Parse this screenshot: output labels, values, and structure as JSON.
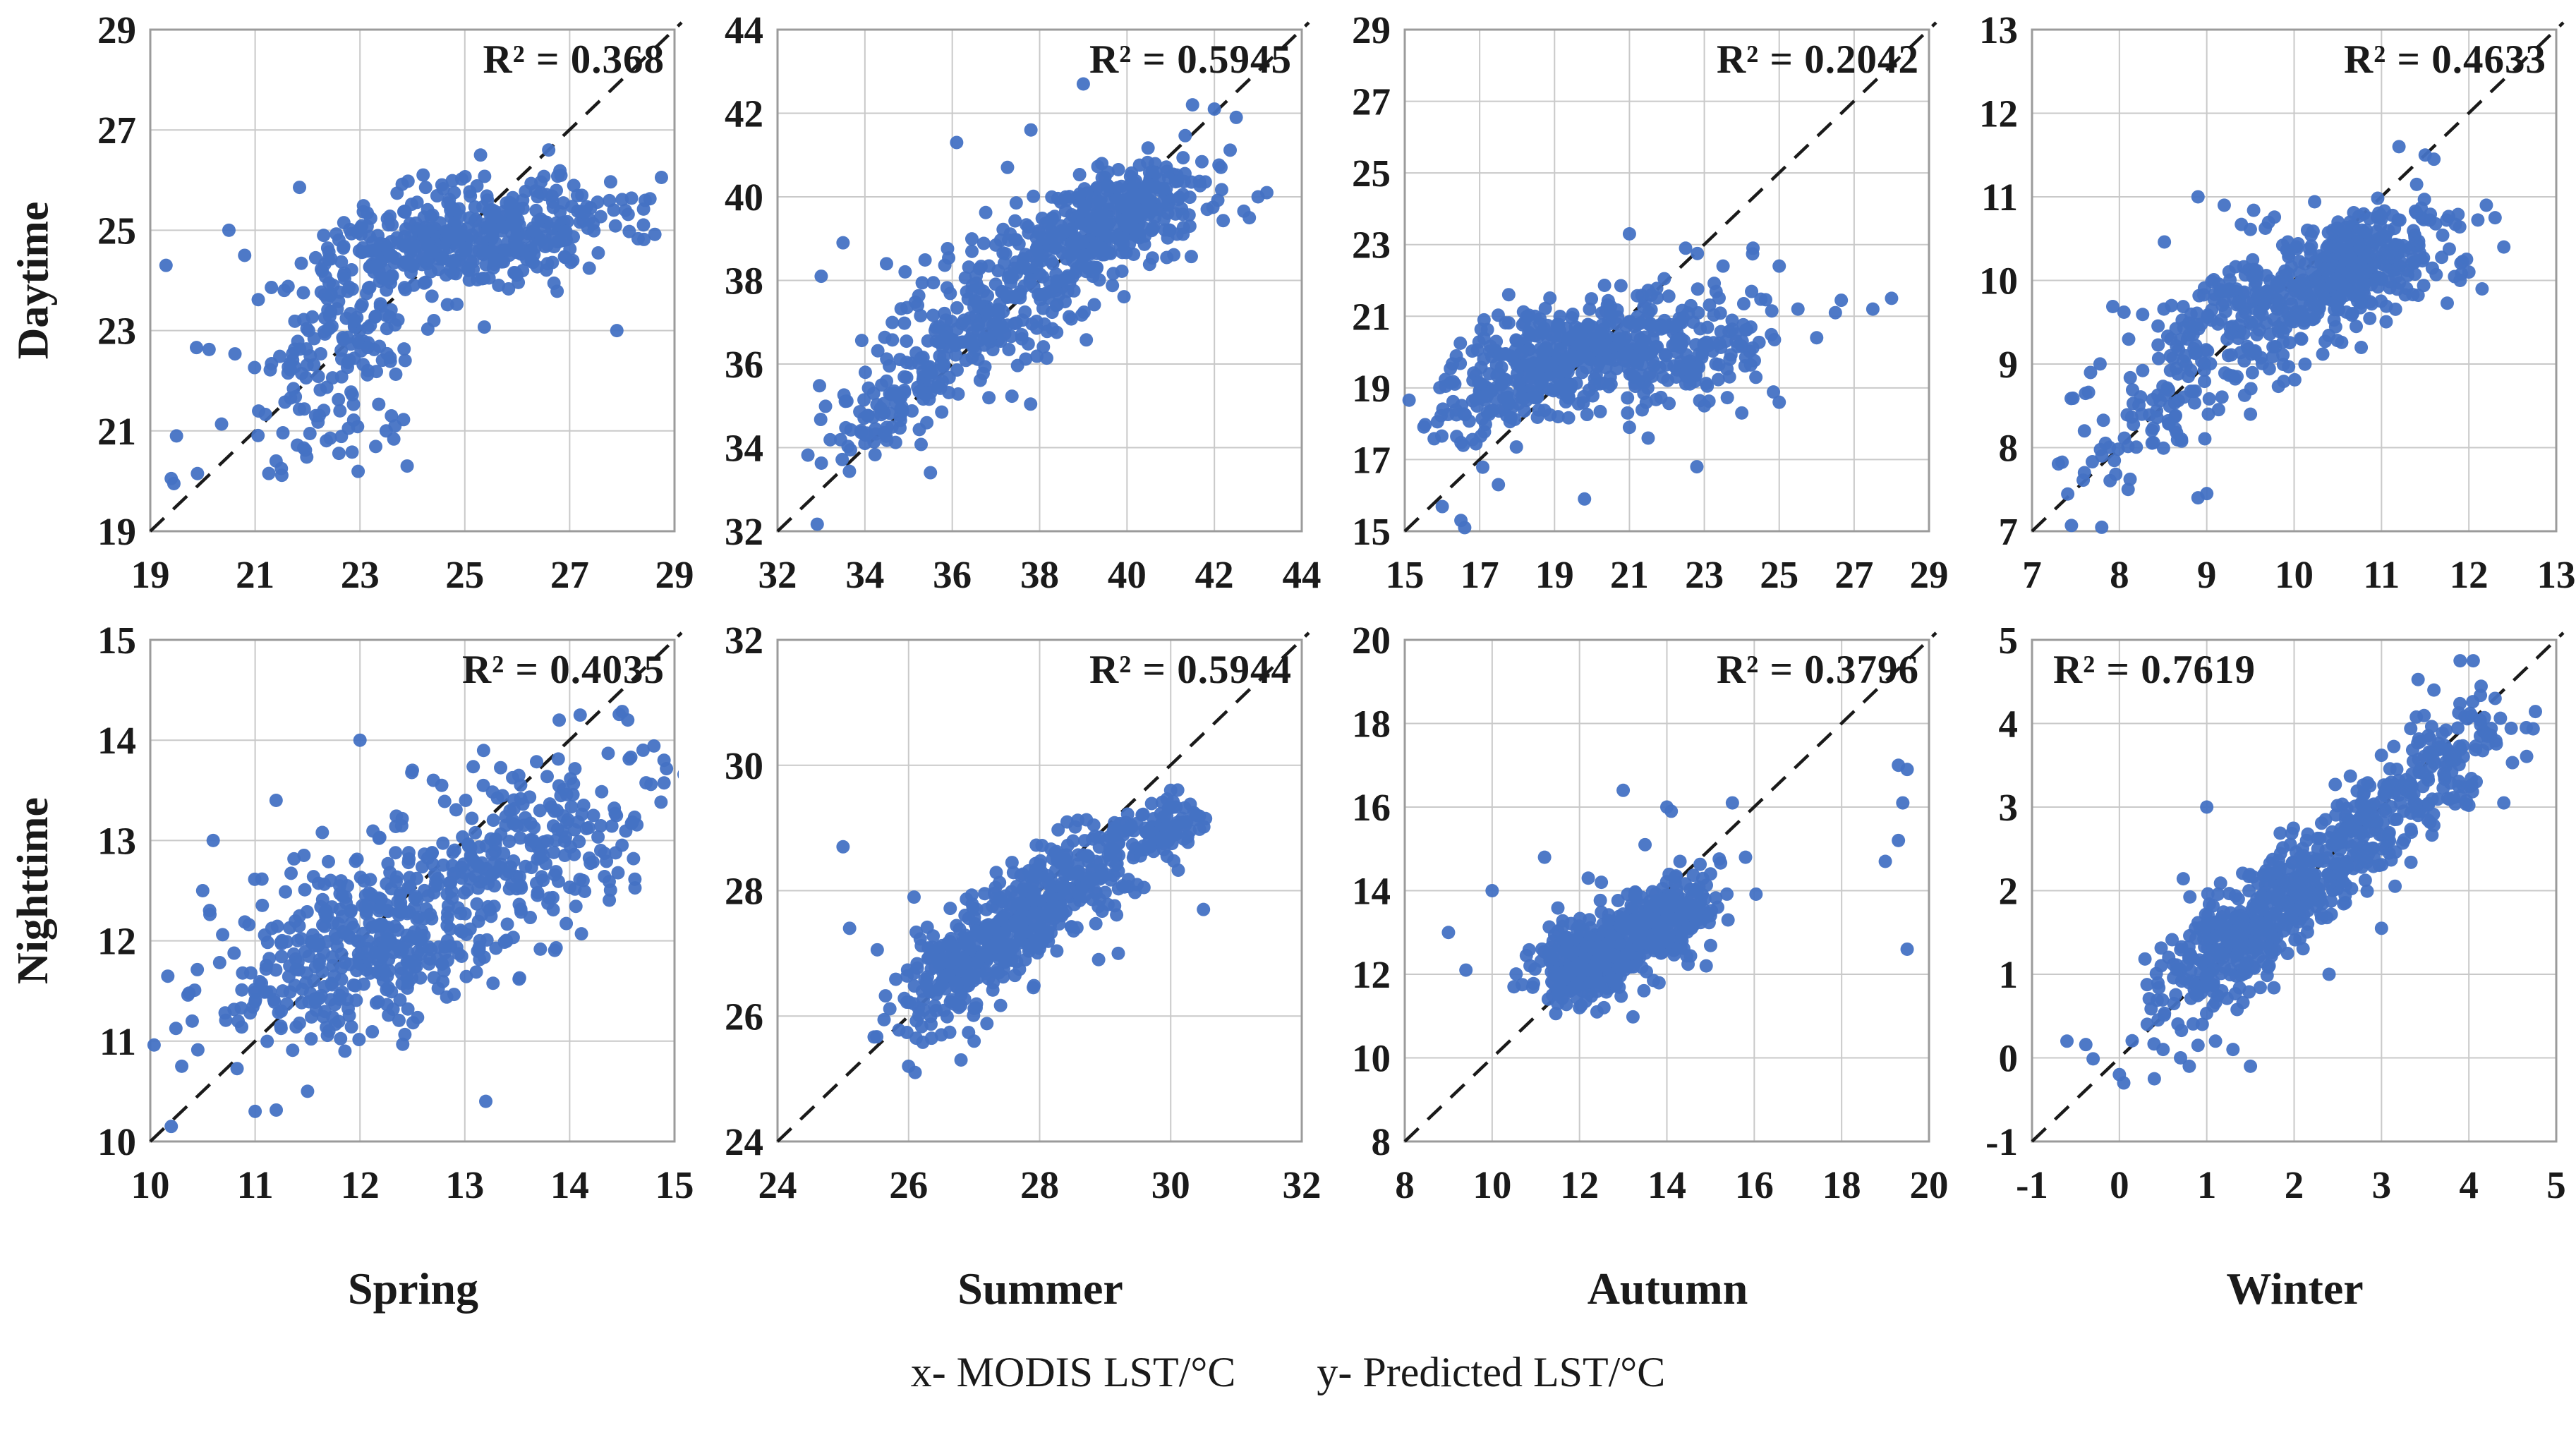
{
  "figure": {
    "row_labels": [
      "Daytime",
      "Nighttime"
    ],
    "season_labels": [
      "Spring",
      "Summer",
      "Autumn",
      "Winter"
    ],
    "caption": {
      "x_label": "x- MODIS LST/°C",
      "y_label": "y- Predicted LST/°C"
    },
    "colors": {
      "point": "#4472C4",
      "grid": "#c9c9c9",
      "border": "#9b9b9b",
      "diagonal": "#1a1a1a",
      "text": "#1a1a1a"
    }
  },
  "chart_data": {
    "type": "scatter",
    "layout": "2x4 grid of identity-line scatter plots; rows = Daytime/Nighttime, columns = Spring/Summer/Autumn/Winter; each panel square with equal x/y ranges, light gridlines, dashed 1:1 diagonal",
    "xlabel": "MODIS LST/°C",
    "ylabel": "Predicted LST/°C",
    "legend": "none",
    "panels": [
      {
        "row": "Daytime",
        "season": "Spring",
        "r2": 0.368,
        "r2_label": "R² = 0.368",
        "r2_align": "right",
        "axis_min": 19,
        "axis_max": 29,
        "tick_step": 2,
        "ticks": [
          19,
          21,
          23,
          25,
          27,
          29
        ],
        "identity_line": true,
        "points": {
          "seed": 11,
          "clusters": [
            {
              "cx": 25.3,
              "cy": 24.9,
              "sx": 1.35,
              "sy": 0.5,
              "rho": 0.3,
              "n": 380
            },
            {
              "cx": 23.0,
              "cy": 23.6,
              "sx": 1.0,
              "sy": 0.9,
              "rho": 0.45,
              "n": 160
            },
            {
              "cx": 22.3,
              "cy": 21.7,
              "sx": 0.7,
              "sy": 0.7,
              "rho": 0.3,
              "n": 60
            }
          ],
          "outliers": [
            [
              19.3,
              24.3
            ],
            [
              19.5,
              20.9
            ],
            [
              19.4,
              20.05
            ],
            [
              19.45,
              19.95
            ],
            [
              19.9,
              20.15
            ],
            [
              21.4,
              20.4
            ],
            [
              21.5,
              20.25
            ],
            [
              23.9,
              20.3
            ],
            [
              23.5,
              21.0
            ],
            [
              23.6,
              21.3
            ],
            [
              27.9,
              23.0
            ],
            [
              26.6,
              26.6
            ],
            [
              25.3,
              26.5
            ],
            [
              20.5,
              25.0
            ],
            [
              20.8,
              24.5
            ]
          ]
        }
      },
      {
        "row": "Daytime",
        "season": "Summer",
        "r2": 0.5945,
        "r2_label": "R² = 0.5945",
        "r2_align": "right",
        "axis_min": 32,
        "axis_max": 44,
        "tick_step": 2,
        "ticks": [
          32,
          34,
          36,
          38,
          40,
          42,
          44
        ],
        "identity_line": true,
        "points": {
          "seed": 22,
          "clusters": [
            {
              "cx": 39.7,
              "cy": 39.5,
              "sx": 1.15,
              "sy": 0.7,
              "rho": 0.5,
              "n": 330
            },
            {
              "cx": 37.3,
              "cy": 37.6,
              "sx": 1.3,
              "sy": 1.1,
              "rho": 0.5,
              "n": 260
            },
            {
              "cx": 34.8,
              "cy": 35.3,
              "sx": 0.8,
              "sy": 0.8,
              "rho": 0.55,
              "n": 110
            }
          ],
          "outliers": [
            [
              33.0,
              38.1
            ],
            [
              33.5,
              38.9
            ],
            [
              36.1,
              41.3
            ],
            [
              37.8,
              41.6
            ],
            [
              39.0,
              42.7
            ],
            [
              42.5,
              41.9
            ],
            [
              43.0,
              40.0
            ],
            [
              42.8,
              39.5
            ],
            [
              35.5,
              33.4
            ],
            [
              34.0,
              34.1
            ],
            [
              43.2,
              40.1
            ],
            [
              41.5,
              42.2
            ],
            [
              42.0,
              42.1
            ]
          ]
        }
      },
      {
        "row": "Daytime",
        "season": "Autumn",
        "r2": 0.2042,
        "r2_label": "R² = 0.2042",
        "r2_align": "right",
        "axis_min": 15,
        "axis_max": 29,
        "tick_step": 2,
        "ticks": [
          15,
          17,
          19,
          21,
          23,
          25,
          27,
          29
        ],
        "identity_line": true,
        "points": {
          "seed": 33,
          "clusters": [
            {
              "cx": 19.3,
              "cy": 19.9,
              "sx": 1.3,
              "sy": 0.75,
              "rho": 0.3,
              "n": 330
            },
            {
              "cx": 22.3,
              "cy": 20.3,
              "sx": 1.2,
              "sy": 0.8,
              "rho": 0.2,
              "n": 180
            },
            {
              "cx": 17.3,
              "cy": 18.6,
              "sx": 0.8,
              "sy": 0.9,
              "rho": 0.5,
              "n": 80
            }
          ],
          "outliers": [
            [
              21.0,
              23.3
            ],
            [
              22.5,
              22.9
            ],
            [
              23.5,
              22.4
            ],
            [
              24.3,
              22.9
            ],
            [
              25.0,
              22.4
            ],
            [
              25.5,
              21.2
            ],
            [
              26.5,
              21.1
            ],
            [
              27.5,
              21.2
            ],
            [
              28.0,
              21.5
            ],
            [
              26.0,
              20.4
            ],
            [
              16.5,
              15.3
            ],
            [
              16.6,
              15.1
            ],
            [
              17.5,
              16.3
            ],
            [
              19.8,
              15.9
            ],
            [
              21.5,
              17.6
            ],
            [
              22.8,
              16.8
            ],
            [
              23.0,
              18.5
            ],
            [
              25.0,
              18.6
            ],
            [
              21.0,
              17.9
            ],
            [
              24.0,
              18.3
            ]
          ]
        }
      },
      {
        "row": "Daytime",
        "season": "Winter",
        "r2": 0.4633,
        "r2_label": "R² = 0.4633",
        "r2_align": "right",
        "axis_min": 7,
        "axis_max": 13,
        "tick_step": 1,
        "ticks": [
          7,
          8,
          9,
          10,
          11,
          12,
          13
        ],
        "identity_line": true,
        "points": {
          "seed": 44,
          "clusters": [
            {
              "cx": 10.7,
              "cy": 10.2,
              "sx": 0.55,
              "sy": 0.35,
              "rho": 0.4,
              "n": 330
            },
            {
              "cx": 9.5,
              "cy": 9.6,
              "sx": 0.7,
              "sy": 0.5,
              "rho": 0.5,
              "n": 220
            },
            {
              "cx": 8.5,
              "cy": 8.5,
              "sx": 0.5,
              "sy": 0.55,
              "rho": 0.6,
              "n": 80
            }
          ],
          "outliers": [
            [
              7.6,
              8.2
            ],
            [
              7.6,
              7.7
            ],
            [
              7.8,
              7.9
            ],
            [
              8.1,
              7.5
            ],
            [
              8.9,
              7.4
            ],
            [
              9.0,
              7.45
            ],
            [
              11.5,
              11.5
            ],
            [
              11.6,
              11.45
            ],
            [
              11.2,
              11.6
            ],
            [
              12.2,
              10.9
            ],
            [
              12.3,
              10.75
            ],
            [
              12.0,
              10.1
            ],
            [
              12.4,
              10.4
            ],
            [
              11.9,
              10.0
            ],
            [
              9.2,
              10.9
            ],
            [
              8.9,
              11.0
            ],
            [
              9.5,
              8.4
            ]
          ]
        }
      },
      {
        "row": "Nighttime",
        "season": "Spring",
        "r2": 0.4035,
        "r2_label": "R² = 0.4035",
        "r2_align": "right",
        "axis_min": 10,
        "axis_max": 15,
        "tick_step": 1,
        "ticks": [
          10,
          11,
          12,
          13,
          14,
          15
        ],
        "identity_line": true,
        "points": {
          "seed": 55,
          "clusters": [
            {
              "cx": 11.8,
              "cy": 11.8,
              "sx": 0.7,
              "sy": 0.45,
              "rho": 0.3,
              "n": 260
            },
            {
              "cx": 12.8,
              "cy": 12.5,
              "sx": 0.8,
              "sy": 0.55,
              "rho": 0.4,
              "n": 260
            },
            {
              "cx": 14.0,
              "cy": 13.1,
              "sx": 0.6,
              "sy": 0.5,
              "rho": 0.4,
              "n": 130
            }
          ],
          "outliers": [
            [
              10.2,
              10.15
            ],
            [
              10.3,
              10.75
            ],
            [
              10.5,
              12.5
            ],
            [
              10.4,
              11.2
            ],
            [
              11.0,
              10.3
            ],
            [
              11.5,
              10.5
            ],
            [
              12.0,
              14.0
            ],
            [
              12.5,
              13.7
            ],
            [
              12.7,
              13.6
            ],
            [
              13.9,
              14.2
            ],
            [
              14.1,
              14.25
            ],
            [
              14.7,
              13.9
            ],
            [
              14.9,
              13.8
            ],
            [
              13.2,
              10.4
            ],
            [
              11.2,
              13.4
            ],
            [
              10.6,
              13.0
            ]
          ]
        }
      },
      {
        "row": "Nighttime",
        "season": "Summer",
        "r2": 0.5944,
        "r2_label": "R² = 0.5944",
        "r2_align": "right",
        "axis_min": 24,
        "axis_max": 32,
        "tick_step": 2,
        "ticks": [
          24,
          26,
          28,
          30,
          32
        ],
        "identity_line": true,
        "points": {
          "seed": 66,
          "clusters": [
            {
              "cx": 27.0,
              "cy": 26.9,
              "sx": 0.6,
              "sy": 0.5,
              "rho": 0.6,
              "n": 260
            },
            {
              "cx": 28.2,
              "cy": 28.0,
              "sx": 0.7,
              "sy": 0.5,
              "rho": 0.6,
              "n": 260
            },
            {
              "cx": 29.8,
              "cy": 29.0,
              "sx": 0.4,
              "sy": 0.25,
              "rho": 0.5,
              "n": 90
            }
          ],
          "outliers": [
            [
              25.0,
              28.7
            ],
            [
              25.1,
              27.4
            ],
            [
              26.0,
              25.2
            ],
            [
              26.1,
              25.1
            ],
            [
              26.8,
              25.3
            ],
            [
              27.0,
              25.6
            ],
            [
              26.5,
              25.7
            ],
            [
              30.0,
              29.6
            ],
            [
              30.4,
              29.2
            ],
            [
              30.5,
              27.7
            ],
            [
              29.2,
              27.0
            ],
            [
              28.9,
              26.9
            ]
          ]
        }
      },
      {
        "row": "Nighttime",
        "season": "Autumn",
        "r2": 0.3796,
        "r2_label": "R² = 0.3796",
        "r2_align": "right",
        "axis_min": 8,
        "axis_max": 20,
        "tick_step": 2,
        "ticks": [
          8,
          10,
          12,
          14,
          16,
          18,
          20
        ],
        "identity_line": true,
        "points": {
          "seed": 77,
          "clusters": [
            {
              "cx": 12.3,
              "cy": 12.4,
              "sx": 0.7,
              "sy": 0.5,
              "rho": 0.3,
              "n": 300
            },
            {
              "cx": 13.8,
              "cy": 13.2,
              "sx": 0.7,
              "sy": 0.55,
              "rho": 0.5,
              "n": 260
            }
          ],
          "outliers": [
            [
              9.0,
              13.0
            ],
            [
              9.4,
              12.1
            ],
            [
              10.0,
              14.0
            ],
            [
              10.5,
              11.7
            ],
            [
              11.2,
              14.8
            ],
            [
              12.2,
              14.3
            ],
            [
              12.5,
              14.2
            ],
            [
              13.0,
              16.4
            ],
            [
              14.0,
              16.0
            ],
            [
              14.1,
              15.9
            ],
            [
              13.5,
              15.1
            ],
            [
              14.3,
              14.7
            ],
            [
              15.0,
              14.4
            ],
            [
              15.5,
              16.1
            ],
            [
              15.8,
              14.8
            ],
            [
              15.4,
              13.3
            ],
            [
              14.9,
              12.2
            ],
            [
              19.3,
              17.0
            ],
            [
              19.5,
              16.9
            ],
            [
              19.4,
              16.1
            ],
            [
              19.3,
              15.2
            ],
            [
              19.0,
              14.7
            ],
            [
              19.5,
              12.6
            ],
            [
              11.5,
              11.3
            ],
            [
              12.0,
              11.2
            ],
            [
              12.4,
              11.1
            ]
          ]
        }
      },
      {
        "row": "Nighttime",
        "season": "Winter",
        "r2": 0.7619,
        "r2_label": "R² = 0.7619",
        "r2_align": "left",
        "axis_min": -1,
        "axis_max": 5,
        "tick_step": 1,
        "ticks": [
          -1,
          0,
          1,
          2,
          3,
          4,
          5
        ],
        "identity_line": true,
        "points": {
          "seed": 88,
          "clusters": [
            {
              "cx": 1.4,
              "cy": 1.4,
              "sx": 0.55,
              "sy": 0.45,
              "rho": 0.75,
              "n": 300
            },
            {
              "cx": 2.3,
              "cy": 2.3,
              "sx": 0.6,
              "sy": 0.5,
              "rho": 0.75,
              "n": 240
            },
            {
              "cx": 3.4,
              "cy": 3.3,
              "sx": 0.5,
              "sy": 0.45,
              "rho": 0.7,
              "n": 180
            }
          ],
          "outliers": [
            [
              -0.6,
              0.2
            ],
            [
              0.0,
              -0.2
            ],
            [
              0.05,
              -0.3
            ],
            [
              0.4,
              -0.25
            ],
            [
              0.5,
              0.1
            ],
            [
              0.7,
              0.0
            ],
            [
              0.8,
              -0.1
            ],
            [
              0.9,
              0.15
            ],
            [
              1.1,
              0.2
            ],
            [
              1.3,
              0.1
            ],
            [
              1.5,
              -0.1
            ],
            [
              1.0,
              3.0
            ],
            [
              3.9,
              4.75
            ],
            [
              4.05,
              4.75
            ],
            [
              3.6,
              4.4
            ],
            [
              4.3,
              4.3
            ],
            [
              4.4,
              3.05
            ],
            [
              3.0,
              1.55
            ],
            [
              2.4,
              1.0
            ]
          ]
        }
      }
    ]
  }
}
